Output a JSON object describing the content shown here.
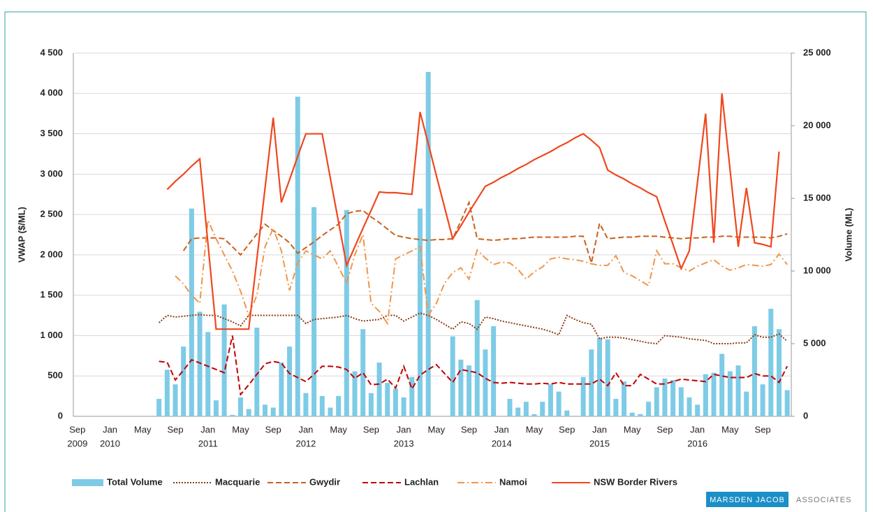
{
  "chart_data": {
    "type": "bar_line",
    "y_label": "VWAP ($/ML)",
    "y2_label": "Volume (ML)",
    "categories": [
      "Sep",
      null,
      null,
      null,
      "Jan",
      null,
      null,
      null,
      "May",
      null,
      null,
      null,
      "Sep",
      null,
      null,
      null,
      "Jan",
      null,
      null,
      null,
      "May",
      null,
      null,
      null,
      "Sep",
      null,
      null,
      null,
      "Jan",
      null,
      null,
      null,
      "May",
      null,
      null,
      null,
      "Sep",
      null,
      null,
      null,
      "Jan",
      null,
      null,
      null,
      "May",
      null,
      null,
      null,
      "Sep",
      null,
      null,
      null,
      "Jan",
      null,
      null,
      null,
      "May",
      null,
      null,
      null,
      "Sep",
      null,
      null,
      null,
      "Jan",
      null,
      null,
      null,
      "May",
      null,
      null,
      null,
      "Sep",
      null,
      null,
      null,
      "Jan",
      null,
      null,
      null,
      "May",
      null,
      null,
      null,
      "Sep",
      null,
      null,
      null
    ],
    "category_years": [
      "2009",
      null,
      null,
      null,
      "2010",
      null,
      null,
      null,
      null,
      null,
      null,
      null,
      null,
      null,
      null,
      null,
      "2011",
      null,
      null,
      null,
      null,
      null,
      null,
      null,
      null,
      null,
      null,
      null,
      "2012",
      null,
      null,
      null,
      null,
      null,
      null,
      null,
      null,
      null,
      null,
      null,
      "2013",
      null,
      null,
      null,
      null,
      null,
      null,
      null,
      null,
      null,
      null,
      null,
      "2014",
      null,
      null,
      null,
      null,
      null,
      null,
      null,
      null,
      null,
      null,
      null,
      "2015",
      null,
      null,
      null,
      null,
      null,
      null,
      null,
      null,
      null,
      null,
      null,
      "2016",
      null,
      null,
      null,
      null,
      null,
      null,
      null,
      null,
      null,
      null,
      null
    ],
    "ylim": [
      0,
      4500
    ],
    "yticks": [
      0,
      {
        "value": 500,
        "label": "500"
      },
      {
        "value": 1000,
        "label": "1 000"
      },
      {
        "value": 1500,
        "label": "1 500"
      },
      {
        "value": 2000,
        "label": "2 000"
      },
      {
        "value": 2500,
        "label": "2 500"
      },
      {
        "value": 3000,
        "label": "3 000"
      },
      {
        "value": 3500,
        "label": "3 500"
      },
      {
        "value": 4000,
        "label": "4 000"
      },
      {
        "value": 4500,
        "label": "4 500"
      }
    ],
    "y2lim": [
      0,
      25000
    ],
    "y2ticks": [
      0,
      {
        "value": 5000,
        "label": "5 000"
      },
      {
        "value": 10000,
        "label": "10 000"
      },
      {
        "value": 15000,
        "label": "15 000"
      },
      {
        "value": 20000,
        "label": "20 000"
      },
      {
        "value": 25000,
        "label": "25 000"
      }
    ],
    "grid": true,
    "series": [
      {
        "name": "Total Volume",
        "type": "bar",
        "axis": "y2",
        "color": "#7ecbe6",
        "values": [
          null,
          null,
          null,
          null,
          null,
          null,
          null,
          null,
          null,
          null,
          1200,
          3200,
          2200,
          4800,
          14300,
          7200,
          5800,
          1100,
          7700,
          100,
          1300,
          500,
          6100,
          800,
          600,
          3700,
          4800,
          22000,
          1600,
          14400,
          1400,
          600,
          1400,
          14200,
          3100,
          6000,
          1600,
          3700,
          2300,
          1900,
          1300,
          2700,
          14300,
          23700,
          null,
          null,
          5500,
          3900,
          3500,
          8000,
          4600,
          6200,
          null,
          1200,
          600,
          1000,
          150,
          1000,
          2200,
          1700,
          400,
          null,
          2700,
          4600,
          5400,
          5300,
          1200,
          2400,
          250,
          150,
          1000,
          2000,
          2600,
          2500,
          2000,
          1300,
          800,
          2900,
          3000,
          4300,
          3100,
          3500,
          1700,
          6200,
          2200,
          7400,
          6000,
          1800
        ]
      },
      {
        "name": "Macquarie",
        "type": "line",
        "line_style": "dotted",
        "color": "#8b3a0f",
        "values": [
          null,
          null,
          null,
          null,
          null,
          null,
          null,
          null,
          null,
          null,
          1160,
          1250,
          1230,
          1240,
          1250,
          1260,
          1250,
          1250,
          1210,
          1170,
          1120,
          1250,
          1250,
          1250,
          1250,
          1250,
          1250,
          1250,
          1150,
          1200,
          1210,
          1220,
          1230,
          1250,
          1210,
          1180,
          1190,
          1200,
          1250,
          1250,
          1180,
          1230,
          1280,
          1250,
          1200,
          1140,
          1080,
          1170,
          1150,
          1080,
          1230,
          1210,
          1180,
          1160,
          1140,
          1120,
          1100,
          1080,
          1050,
          1010,
          1250,
          1200,
          1160,
          1140,
          960,
          980,
          980,
          970,
          950,
          930,
          910,
          900,
          1000,
          990,
          980,
          960,
          950,
          940,
          900,
          900,
          900,
          910,
          910,
          1010,
          980,
          980,
          1020,
          930
        ]
      },
      {
        "name": "Gwydir",
        "type": "line",
        "line_style": "dashed",
        "color": "#c8611e",
        "values": [
          null,
          null,
          null,
          null,
          null,
          null,
          null,
          null,
          null,
          null,
          null,
          null,
          null,
          2050,
          2200,
          2210,
          2210,
          2210,
          2200,
          2100,
          2000,
          2130,
          2260,
          2380,
          2300,
          2230,
          2150,
          2020,
          2090,
          2160,
          2240,
          2310,
          2380,
          2510,
          2540,
          2550,
          2470,
          2400,
          2320,
          2240,
          2220,
          2200,
          2190,
          2180,
          2190,
          2190,
          2200,
          2420,
          2650,
          2200,
          2190,
          2180,
          2190,
          2200,
          2200,
          2210,
          2220,
          2220,
          2220,
          2220,
          2220,
          2230,
          2230,
          1900,
          2390,
          2200,
          2210,
          2220,
          2220,
          2230,
          2230,
          2230,
          2220,
          2210,
          2200,
          2210,
          2210,
          2220,
          2220,
          2230,
          2230,
          2220,
          2220,
          2220,
          2220,
          2210,
          2230,
          2260
        ]
      },
      {
        "name": "Lachlan",
        "type": "line",
        "line_style": "dashed",
        "color": "#c00000",
        "values": [
          null,
          null,
          null,
          null,
          null,
          null,
          null,
          null,
          null,
          null,
          680,
          670,
          450,
          570,
          700,
          660,
          620,
          580,
          540,
          1000,
          270,
          390,
          520,
          650,
          680,
          660,
          530,
          480,
          430,
          520,
          620,
          620,
          610,
          580,
          470,
          540,
          390,
          400,
          460,
          350,
          620,
          340,
          510,
          580,
          640,
          530,
          420,
          580,
          560,
          540,
          470,
          420,
          410,
          420,
          410,
          400,
          400,
          410,
          400,
          420,
          400,
          400,
          400,
          400,
          460,
          380,
          540,
          380,
          380,
          520,
          460,
          400,
          400,
          430,
          460,
          450,
          440,
          430,
          520,
          500,
          480,
          480,
          480,
          530,
          500,
          500,
          420,
          620
        ]
      },
      {
        "name": "Namoi",
        "type": "line",
        "line_style": "dashdot",
        "color": "#f0964a",
        "values": [
          null,
          null,
          null,
          null,
          null,
          null,
          null,
          null,
          null,
          null,
          null,
          null,
          1740,
          1640,
          1500,
          1400,
          2430,
          2200,
          2000,
          1800,
          1550,
          1250,
          1500,
          2100,
          2330,
          2050,
          1560,
          1900,
          2050,
          2000,
          1950,
          2050,
          1850,
          1650,
          2000,
          2250,
          1400,
          1300,
          1150,
          1950,
          2000,
          2050,
          2100,
          1250,
          1400,
          1650,
          1780,
          1840,
          1700,
          2060,
          1960,
          1880,
          1910,
          1900,
          1820,
          1700,
          1790,
          1850,
          1950,
          1970,
          1950,
          1940,
          1920,
          1890,
          1870,
          1870,
          1990,
          1780,
          1740,
          1680,
          1620,
          2050,
          1890,
          1890,
          1840,
          1800,
          1860,
          1900,
          1940,
          1860,
          1810,
          1840,
          1880,
          1870,
          1860,
          1880,
          2010,
          1880
        ]
      },
      {
        "name": "NSW Border Rivers",
        "type": "line",
        "line_style": "solid",
        "color": "#f0461e",
        "values": [
          null,
          null,
          null,
          null,
          null,
          null,
          null,
          null,
          null,
          null,
          null,
          2810,
          2910,
          3000,
          3100,
          3190,
          2140,
          1080,
          1080,
          1080,
          1080,
          1080,
          1950,
          2830,
          3700,
          2650,
          2930,
          3220,
          3500,
          3500,
          3500,
          2950,
          2410,
          1870,
          2100,
          2330,
          2550,
          2780,
          2770,
          2770,
          2760,
          2750,
          3770,
          3380,
          2980,
          2590,
          2200,
          2360,
          2530,
          2690,
          2850,
          2900,
          2960,
          3010,
          3070,
          3120,
          3180,
          3230,
          3280,
          3340,
          3390,
          3450,
          3500,
          3420,
          3330,
          3050,
          2990,
          2940,
          2880,
          2830,
          2770,
          2720,
          2420,
          2130,
          1830,
          2050,
          2900,
          3750,
          2150,
          4000,
          3050,
          2100,
          2830,
          2150,
          2130,
          2100,
          3280,
          null
        ]
      }
    ]
  },
  "logo": {
    "name": "MARSDEN JACOB",
    "suffix": "ASSOCIATES"
  }
}
